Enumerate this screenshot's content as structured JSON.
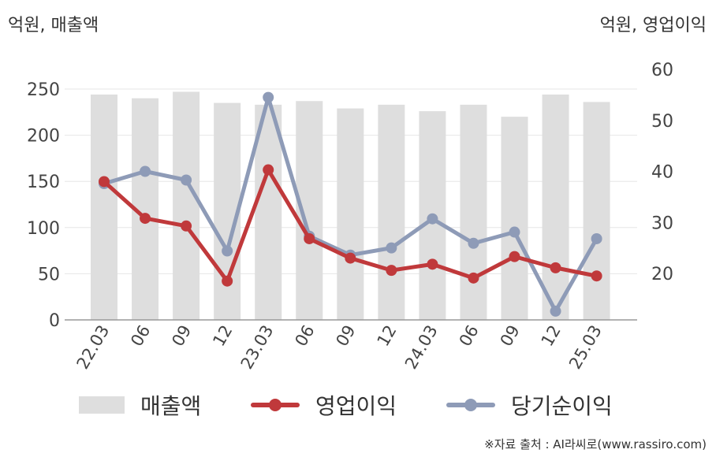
{
  "unit_left": "억원, 매출액",
  "unit_right": "억원, 영업이익",
  "source": "※자료 출처 : AI라씨로(www.rassiro.com)",
  "colors": {
    "bar": "#dedede",
    "operating": "#c0393b",
    "net": "#8e9bb7",
    "grid": "#e6e6e6",
    "axis": "#999999"
  },
  "chart_data": {
    "type": "bar+line",
    "categories": [
      "22.03",
      "06",
      "09",
      "12",
      "23.03",
      "06",
      "09",
      "12",
      "24.03",
      "06",
      "09",
      "12",
      "25.03"
    ],
    "left_axis": {
      "ylim": [
        0,
        250
      ],
      "ticks": [
        "0",
        "50",
        "100",
        "150",
        "200",
        "250"
      ]
    },
    "right_axis": {
      "ylim": [
        11,
        60
      ],
      "ticks": [
        "20",
        "30",
        "40",
        "50",
        "60"
      ]
    },
    "grid": true,
    "legend_position": "bottom",
    "series": [
      {
        "name": "매출액",
        "type": "bar",
        "axis": "left",
        "values": [
          244,
          240,
          247,
          235,
          233,
          237,
          229,
          233,
          226,
          233,
          220,
          244,
          236
        ]
      },
      {
        "name": "영업이익",
        "type": "line",
        "axis": "right",
        "values": [
          38.0,
          30.8,
          29.3,
          18.5,
          40.3,
          26.8,
          23.0,
          20.6,
          21.8,
          19.1,
          23.3,
          21.1,
          19.5
        ]
      },
      {
        "name": "당기순이익",
        "type": "line",
        "axis": "right",
        "values": [
          37.6,
          40.0,
          38.3,
          24.4,
          54.5,
          27.3,
          23.6,
          25.0,
          30.7,
          25.9,
          28.1,
          12.6,
          26.8
        ]
      }
    ]
  }
}
